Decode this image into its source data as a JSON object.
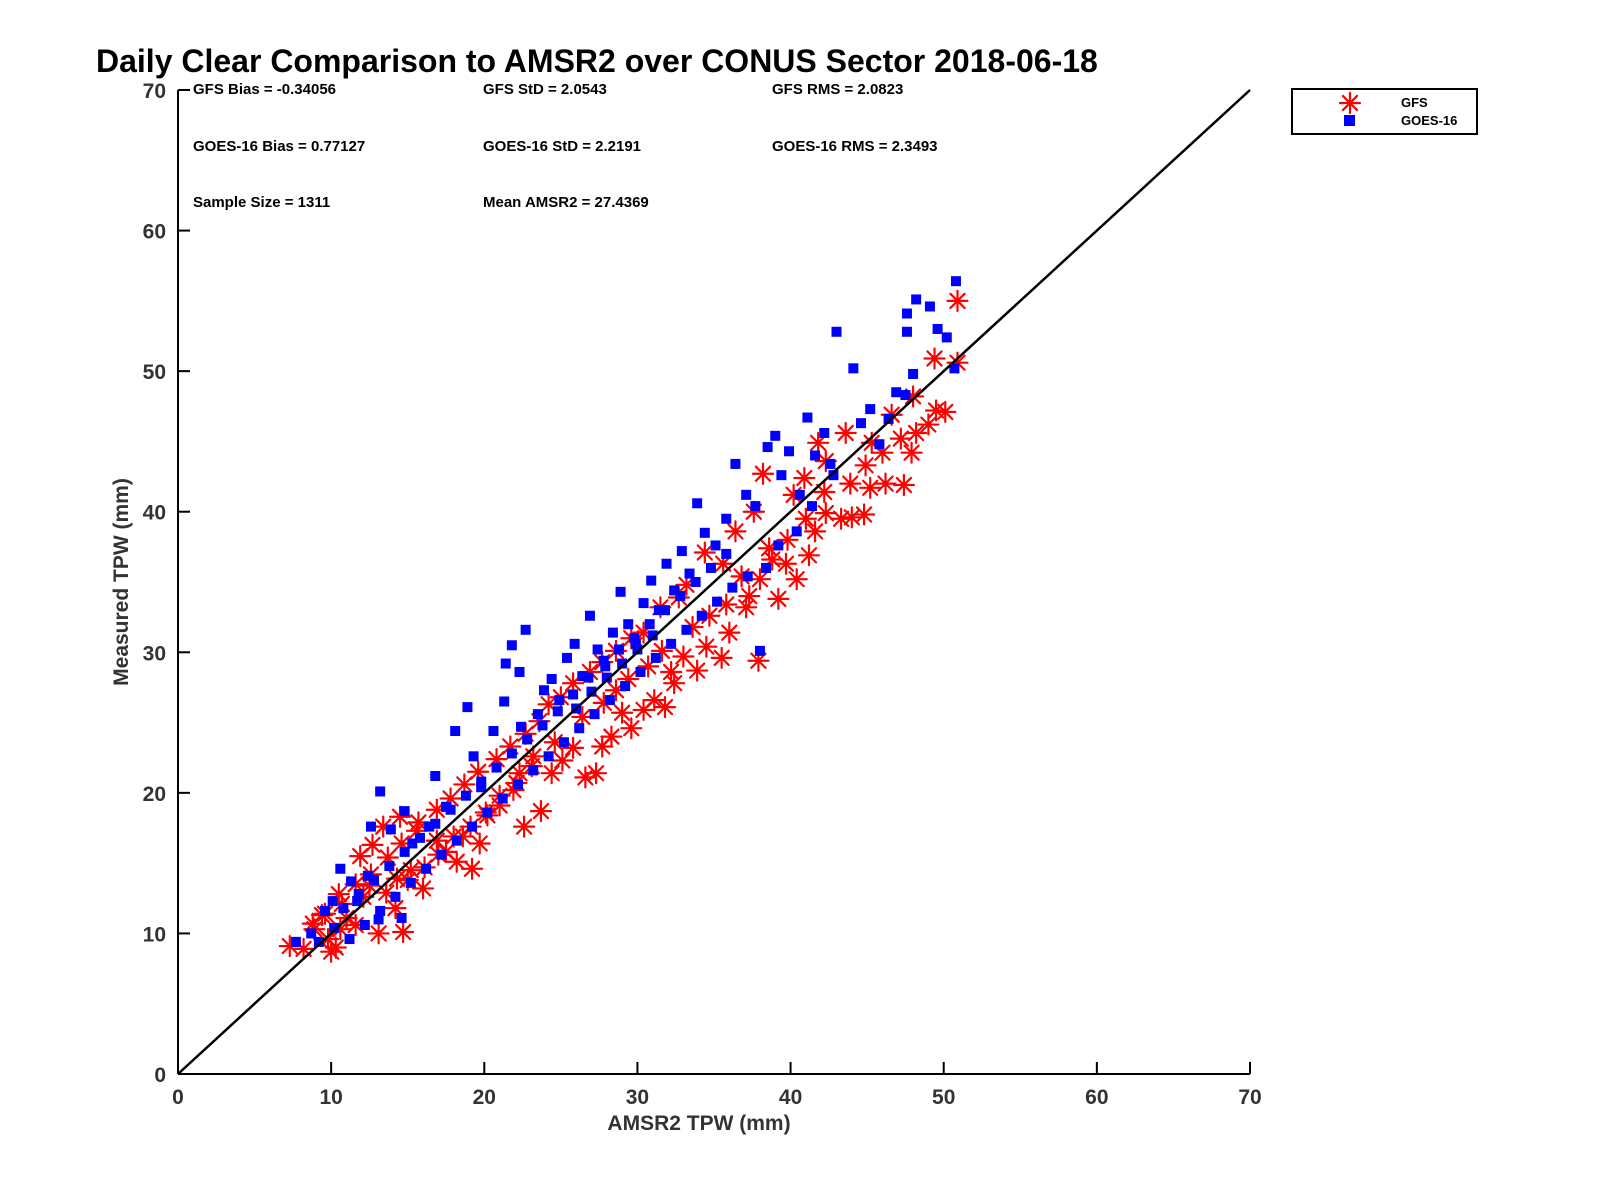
{
  "chart_data": {
    "type": "scatter",
    "title": "Daily Clear Comparison to AMSR2 over CONUS Sector 2018-06-18",
    "xlabel": "AMSR2 TPW (mm)",
    "ylabel": "Measured TPW (mm)",
    "xlim": [
      0,
      70
    ],
    "ylim": [
      0,
      70
    ],
    "xticks": [
      "0",
      "10",
      "20",
      "30",
      "40",
      "50",
      "60",
      "70"
    ],
    "yticks": [
      "0",
      "10",
      "20",
      "30",
      "40",
      "50",
      "60",
      "70"
    ],
    "grid": false,
    "legend_position": "outside-top-right",
    "reference_line": {
      "from": [
        0,
        0
      ],
      "to": [
        70,
        70
      ],
      "color": "#000000"
    },
    "stats": [
      "GFS Bias = -0.34056",
      "GFS StD = 2.0543",
      "GFS RMS = 2.0823",
      "GOES-16 Bias = 0.77127",
      "GOES-16 StD = 2.2191",
      "GOES-16 RMS = 2.3493",
      "Sample Size = 1311",
      "Mean AMSR2 = 27.4369"
    ],
    "series": [
      {
        "name": "GFS",
        "marker": "asterisk",
        "color": "#ff0000",
        "points": [
          [
            7.3,
            9.1
          ],
          [
            8.2,
            8.9
          ],
          [
            8.8,
            10.7
          ],
          [
            9.4,
            11.3
          ],
          [
            9.8,
            9.6
          ],
          [
            10.0,
            8.7
          ],
          [
            10.3,
            9.0
          ],
          [
            10.6,
            10.3
          ],
          [
            11.0,
            11.1
          ],
          [
            11.6,
            10.6
          ],
          [
            10.5,
            12.8
          ],
          [
            12.1,
            12.6
          ],
          [
            12.5,
            13.4
          ],
          [
            13.1,
            10.0
          ],
          [
            14.7,
            10.1
          ],
          [
            14.2,
            11.8
          ],
          [
            13.6,
            12.9
          ],
          [
            14.3,
            13.9
          ],
          [
            15.2,
            14.5
          ],
          [
            16.0,
            13.2
          ],
          [
            11.9,
            15.5
          ],
          [
            12.7,
            16.3
          ],
          [
            13.4,
            17.6
          ],
          [
            14.5,
            18.3
          ],
          [
            15.7,
            17.9
          ],
          [
            16.9,
            16.6
          ],
          [
            17.5,
            15.8
          ],
          [
            18.2,
            15.1
          ],
          [
            19.2,
            14.6
          ],
          [
            18.6,
            16.9
          ],
          [
            19.7,
            16.4
          ],
          [
            20.2,
            18.4
          ],
          [
            21.0,
            19.1
          ],
          [
            22.6,
            17.6
          ],
          [
            21.9,
            20.2
          ],
          [
            22.3,
            21.4
          ],
          [
            23.2,
            22.6
          ],
          [
            23.7,
            18.7
          ],
          [
            24.4,
            21.4
          ],
          [
            25.1,
            22.3
          ],
          [
            25.8,
            23.2
          ],
          [
            26.6,
            21.1
          ],
          [
            27.3,
            21.4
          ],
          [
            27.7,
            23.3
          ],
          [
            28.3,
            24.0
          ],
          [
            29.0,
            25.7
          ],
          [
            29.6,
            24.6
          ],
          [
            30.4,
            25.9
          ],
          [
            31.1,
            26.6
          ],
          [
            31.8,
            26.1
          ],
          [
            32.4,
            27.8
          ],
          [
            32.2,
            28.6
          ],
          [
            33.0,
            29.7
          ],
          [
            33.9,
            28.7
          ],
          [
            34.5,
            30.4
          ],
          [
            35.5,
            29.6
          ],
          [
            36.0,
            31.4
          ],
          [
            37.1,
            33.2
          ],
          [
            37.9,
            29.4
          ],
          [
            37.3,
            34.0
          ],
          [
            38.0,
            35.2
          ],
          [
            38.6,
            37.4
          ],
          [
            39.2,
            33.8
          ],
          [
            39.7,
            36.3
          ],
          [
            40.4,
            35.2
          ],
          [
            41.2,
            36.9
          ],
          [
            41.6,
            38.6
          ],
          [
            42.3,
            39.9
          ],
          [
            43.3,
            39.5
          ],
          [
            44.0,
            39.6
          ],
          [
            44.8,
            39.8
          ],
          [
            45.2,
            41.7
          ],
          [
            46.2,
            42.0
          ],
          [
            47.4,
            41.9
          ],
          [
            47.9,
            44.2
          ],
          [
            48.2,
            45.6
          ],
          [
            49.0,
            46.2
          ],
          [
            49.5,
            47.2
          ],
          [
            50.1,
            47.1
          ],
          [
            49.4,
            50.9
          ],
          [
            50.9,
            50.6
          ],
          [
            50.9,
            55.0
          ],
          [
            48.0,
            48.2
          ],
          [
            46.6,
            46.9
          ],
          [
            45.3,
            44.9
          ],
          [
            43.6,
            45.6
          ],
          [
            42.3,
            43.6
          ],
          [
            41.8,
            44.9
          ],
          [
            40.9,
            42.4
          ],
          [
            40.2,
            41.2
          ],
          [
            38.2,
            42.7
          ],
          [
            37.6,
            40.0
          ],
          [
            36.4,
            38.6
          ],
          [
            35.6,
            36.3
          ],
          [
            34.4,
            37.1
          ],
          [
            33.2,
            34.8
          ],
          [
            32.7,
            33.9
          ],
          [
            31.5,
            33.2
          ],
          [
            30.4,
            31.4
          ],
          [
            29.6,
            31.0
          ],
          [
            28.6,
            30.1
          ],
          [
            27.7,
            29.3
          ],
          [
            26.9,
            28.6
          ],
          [
            25.8,
            27.8
          ],
          [
            25.0,
            26.8
          ],
          [
            24.2,
            26.3
          ],
          [
            23.6,
            25.1
          ],
          [
            22.7,
            24.2
          ],
          [
            21.7,
            23.3
          ],
          [
            20.8,
            22.4
          ],
          [
            19.6,
            21.5
          ],
          [
            18.7,
            20.6
          ],
          [
            17.8,
            19.6
          ],
          [
            16.9,
            18.8
          ],
          [
            15.6,
            17.3
          ],
          [
            14.6,
            16.4
          ],
          [
            13.7,
            15.4
          ],
          [
            12.6,
            14.2
          ],
          [
            11.6,
            13.5
          ],
          [
            10.7,
            12.1
          ],
          [
            9.6,
            11.4
          ],
          [
            8.9,
            10.3
          ],
          [
            26.4,
            25.4
          ],
          [
            27.8,
            26.4
          ],
          [
            28.6,
            27.3
          ],
          [
            29.4,
            28.1
          ],
          [
            30.7,
            29.0
          ],
          [
            31.6,
            30.1
          ],
          [
            24.6,
            23.6
          ],
          [
            23.1,
            21.9
          ],
          [
            22.1,
            20.7
          ],
          [
            21.0,
            19.8
          ],
          [
            20.1,
            18.6
          ],
          [
            19.1,
            17.6
          ],
          [
            18.0,
            16.9
          ],
          [
            17.0,
            15.6
          ],
          [
            16.1,
            14.7
          ],
          [
            15.0,
            13.8
          ],
          [
            33.6,
            31.8
          ],
          [
            34.7,
            32.6
          ],
          [
            35.8,
            33.4
          ],
          [
            36.8,
            35.4
          ],
          [
            38.8,
            36.6
          ],
          [
            39.8,
            38.0
          ],
          [
            41.0,
            39.5
          ],
          [
            42.2,
            41.4
          ],
          [
            43.9,
            42.0
          ],
          [
            44.9,
            43.3
          ],
          [
            46.0,
            44.2
          ],
          [
            47.2,
            45.2
          ]
        ]
      },
      {
        "name": "GOES-16",
        "marker": "square",
        "color": "#0000ff",
        "points": [
          [
            7.7,
            9.4
          ],
          [
            8.7,
            10.0
          ],
          [
            9.6,
            11.6
          ],
          [
            10.1,
            12.3
          ],
          [
            10.6,
            14.6
          ],
          [
            11.3,
            13.7
          ],
          [
            11.7,
            12.3
          ],
          [
            12.4,
            14.1
          ],
          [
            13.1,
            11.0
          ],
          [
            14.6,
            11.1
          ],
          [
            12.6,
            17.6
          ],
          [
            13.2,
            20.1
          ],
          [
            13.9,
            17.4
          ],
          [
            14.8,
            18.7
          ],
          [
            15.3,
            16.4
          ],
          [
            16.4,
            17.6
          ],
          [
            16.8,
            21.2
          ],
          [
            17.5,
            19.0
          ],
          [
            18.1,
            24.4
          ],
          [
            18.9,
            26.1
          ],
          [
            19.3,
            22.6
          ],
          [
            19.8,
            20.4
          ],
          [
            20.6,
            24.4
          ],
          [
            21.4,
            29.2
          ],
          [
            21.8,
            30.5
          ],
          [
            22.3,
            28.6
          ],
          [
            22.7,
            31.6
          ],
          [
            21.3,
            26.5
          ],
          [
            22.4,
            24.7
          ],
          [
            23.5,
            25.6
          ],
          [
            23.9,
            27.3
          ],
          [
            24.4,
            28.1
          ],
          [
            24.9,
            26.6
          ],
          [
            25.4,
            29.6
          ],
          [
            25.9,
            30.6
          ],
          [
            26.4,
            28.3
          ],
          [
            26.9,
            32.6
          ],
          [
            27.4,
            30.2
          ],
          [
            27.9,
            29.0
          ],
          [
            28.4,
            31.4
          ],
          [
            28.9,
            34.3
          ],
          [
            29.4,
            32.0
          ],
          [
            29.9,
            30.6
          ],
          [
            30.4,
            33.5
          ],
          [
            30.9,
            35.1
          ],
          [
            31.4,
            33.0
          ],
          [
            31.9,
            36.3
          ],
          [
            32.4,
            34.4
          ],
          [
            32.9,
            37.2
          ],
          [
            33.4,
            35.6
          ],
          [
            33.9,
            40.6
          ],
          [
            34.4,
            38.5
          ],
          [
            35.1,
            37.6
          ],
          [
            35.8,
            39.5
          ],
          [
            36.4,
            43.4
          ],
          [
            37.1,
            41.2
          ],
          [
            37.7,
            40.4
          ],
          [
            38.0,
            30.1
          ],
          [
            38.5,
            44.6
          ],
          [
            39.0,
            45.4
          ],
          [
            39.4,
            42.6
          ],
          [
            39.9,
            44.3
          ],
          [
            40.6,
            41.2
          ],
          [
            41.1,
            46.7
          ],
          [
            41.6,
            44.0
          ],
          [
            42.2,
            45.6
          ],
          [
            42.6,
            43.4
          ],
          [
            43.0,
            52.8
          ],
          [
            44.1,
            50.2
          ],
          [
            44.6,
            46.3
          ],
          [
            45.2,
            47.3
          ],
          [
            45.8,
            44.8
          ],
          [
            46.4,
            46.6
          ],
          [
            46.9,
            48.5
          ],
          [
            47.5,
            48.3
          ],
          [
            48.0,
            49.8
          ],
          [
            47.6,
            54.1
          ],
          [
            48.2,
            55.1
          ],
          [
            49.1,
            54.6
          ],
          [
            49.6,
            53.0
          ],
          [
            50.2,
            52.4
          ],
          [
            50.8,
            56.4
          ],
          [
            50.7,
            50.2
          ],
          [
            47.6,
            52.8
          ],
          [
            42.8,
            42.6
          ],
          [
            41.4,
            40.4
          ],
          [
            40.4,
            38.6
          ],
          [
            39.2,
            37.6
          ],
          [
            38.4,
            36.0
          ],
          [
            37.2,
            35.4
          ],
          [
            36.2,
            34.6
          ],
          [
            35.2,
            33.6
          ],
          [
            34.2,
            32.6
          ],
          [
            33.2,
            31.6
          ],
          [
            32.2,
            30.6
          ],
          [
            31.2,
            29.6
          ],
          [
            30.2,
            28.6
          ],
          [
            29.2,
            27.6
          ],
          [
            28.2,
            26.6
          ],
          [
            27.2,
            25.6
          ],
          [
            26.2,
            24.6
          ],
          [
            25.2,
            23.6
          ],
          [
            24.2,
            22.6
          ],
          [
            23.2,
            21.6
          ],
          [
            22.2,
            20.6
          ],
          [
            21.2,
            19.6
          ],
          [
            20.2,
            18.6
          ],
          [
            19.2,
            17.6
          ],
          [
            18.2,
            16.6
          ],
          [
            17.2,
            15.6
          ],
          [
            16.2,
            14.6
          ],
          [
            15.2,
            13.6
          ],
          [
            14.2,
            12.6
          ],
          [
            13.2,
            11.6
          ],
          [
            12.2,
            10.6
          ],
          [
            11.2,
            9.6
          ],
          [
            10.2,
            10.4
          ],
          [
            9.2,
            9.4
          ],
          [
            24.8,
            25.8
          ],
          [
            25.8,
            27.0
          ],
          [
            26.8,
            28.2
          ],
          [
            27.8,
            29.4
          ],
          [
            28.8,
            30.2
          ],
          [
            29.8,
            31.0
          ],
          [
            30.8,
            32.0
          ],
          [
            31.8,
            33.0
          ],
          [
            32.8,
            34.0
          ],
          [
            33.8,
            35.0
          ],
          [
            34.8,
            36.0
          ],
          [
            35.8,
            37.0
          ],
          [
            23.8,
            24.8
          ],
          [
            22.8,
            23.8
          ],
          [
            21.8,
            22.8
          ],
          [
            20.8,
            21.8
          ],
          [
            19.8,
            20.8
          ],
          [
            18.8,
            19.8
          ],
          [
            17.8,
            18.8
          ],
          [
            16.8,
            17.8
          ],
          [
            15.8,
            16.8
          ],
          [
            14.8,
            15.8
          ],
          [
            13.8,
            14.8
          ],
          [
            12.8,
            13.8
          ],
          [
            11.8,
            12.8
          ],
          [
            10.8,
            11.8
          ],
          [
            26.0,
            26.0
          ],
          [
            27.0,
            27.2
          ],
          [
            28.0,
            28.2
          ],
          [
            29.0,
            29.2
          ],
          [
            30.0,
            30.2
          ],
          [
            31.0,
            31.2
          ]
        ]
      }
    ]
  }
}
